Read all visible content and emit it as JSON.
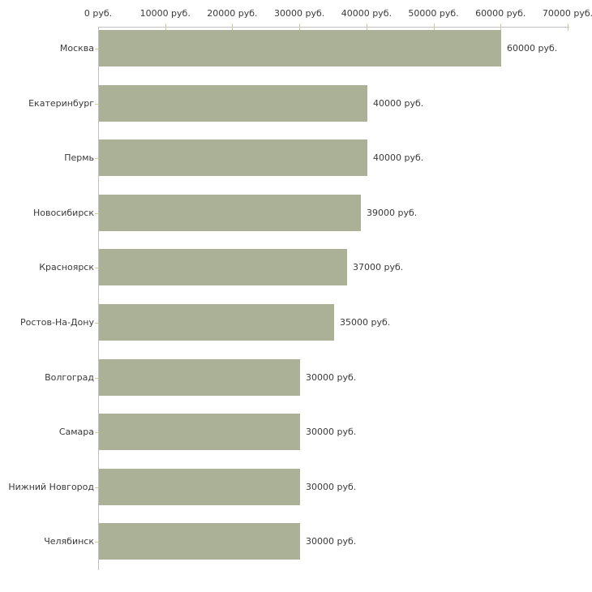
{
  "chart_data": {
    "type": "bar",
    "orientation": "horizontal",
    "title": "",
    "categories": [
      "Москва",
      "Екатеринбург",
      "Пермь",
      "Новосибирск",
      "Красноярск",
      "Ростов-На-Дону",
      "Волгоград",
      "Самара",
      "Нижний Новгород",
      "Челябинск"
    ],
    "values": [
      60000,
      40000,
      40000,
      39000,
      37000,
      35000,
      30000,
      30000,
      30000,
      30000
    ],
    "value_labels": [
      "60000 руб.",
      "40000 руб.",
      "40000 руб.",
      "39000 руб.",
      "37000 руб.",
      "35000 руб.",
      "30000 руб.",
      "30000 руб.",
      "30000 руб.",
      "30000 руб."
    ],
    "unit": "руб.",
    "x_axis": {
      "position": "top",
      "range": [
        0,
        70000
      ],
      "ticks": [
        0,
        10000,
        20000,
        30000,
        40000,
        50000,
        60000,
        70000
      ],
      "tick_labels": [
        "0 руб.",
        "10000 руб.",
        "20000 руб.",
        "30000 руб.",
        "40000 руб.",
        "50000 руб.",
        "60000 руб.",
        "70000 руб."
      ]
    },
    "legend": "none",
    "grid": "off",
    "colors": {
      "bar": "#abb197",
      "axis_line": "#c0c0c0",
      "tick": "#cccc99",
      "text": "#3a3a3a",
      "background": "#ffffff"
    }
  }
}
